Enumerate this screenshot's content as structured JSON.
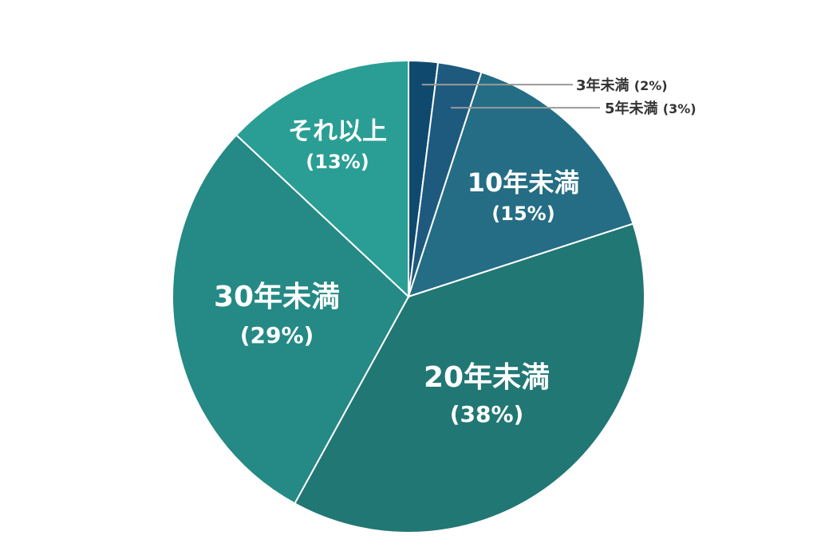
{
  "chart_data": {
    "type": "pie",
    "start": "top",
    "direction": "clockwise",
    "slices": [
      {
        "label": "3年未満",
        "value": 2,
        "pct_label": "(2%)",
        "color": "#0f4a6e",
        "label_style": "callout"
      },
      {
        "label": "5年未満",
        "value": 3,
        "pct_label": "(3%)",
        "color": "#1e5a7e",
        "label_style": "callout"
      },
      {
        "label": "10年未満",
        "value": 15,
        "pct_label": "(15%)",
        "color": "#246d85",
        "label_style": "inside"
      },
      {
        "label": "20年未満",
        "value": 38,
        "pct_label": "(38%)",
        "color": "#217774",
        "label_style": "inside"
      },
      {
        "label": "30年未満",
        "value": 29,
        "pct_label": "(29%)",
        "color": "#258985",
        "label_style": "inside"
      },
      {
        "label": "それ以上",
        "value": 13,
        "pct_label": "(13%)",
        "color": "#2a9e94",
        "label_style": "inside"
      }
    ],
    "inside_text_color": "#ffffff",
    "callout_text_color": "#333333",
    "leader_line_color": "#9a9a9a",
    "slice_border_color": "#ffffff"
  }
}
